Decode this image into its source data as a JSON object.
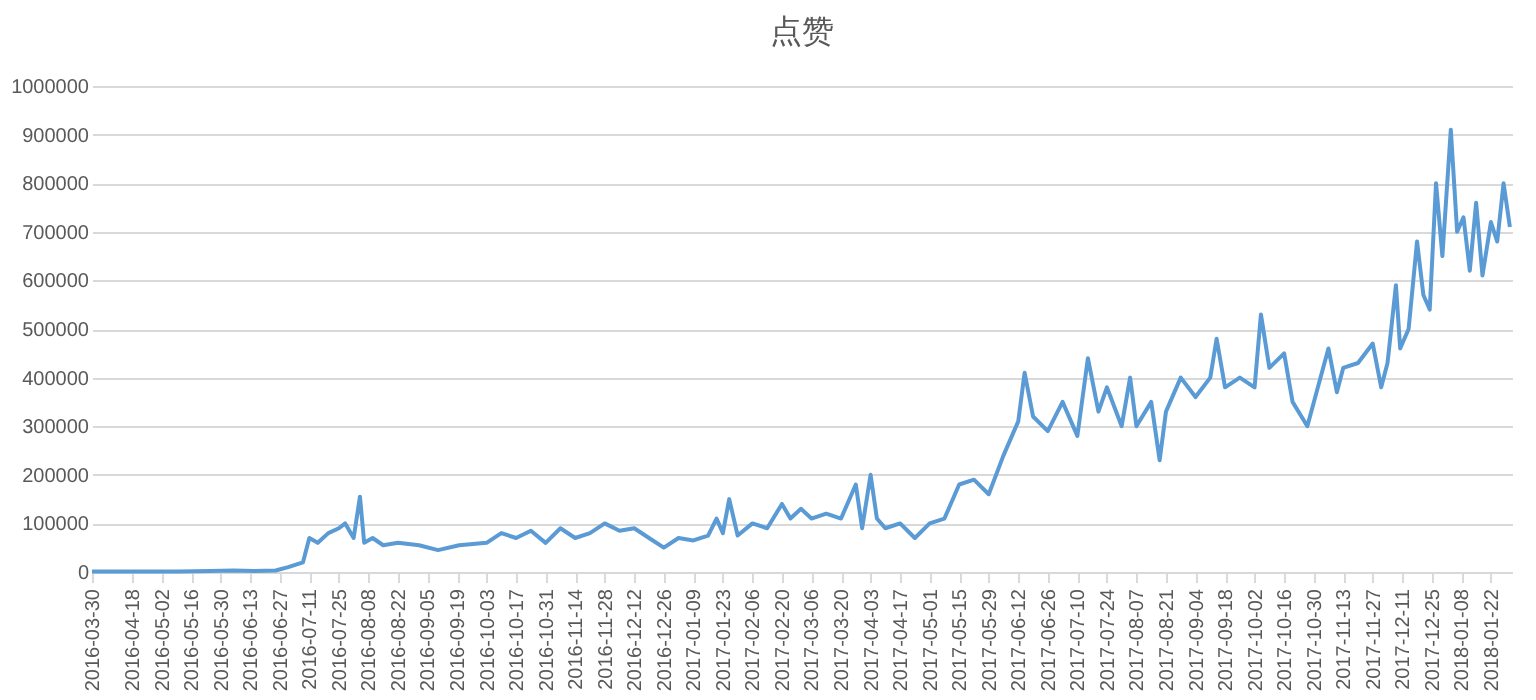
{
  "chart_data": {
    "type": "line",
    "title": "点赞",
    "x": [
      "2016-03-30",
      "2016-04-10",
      "2016-04-25",
      "2016-05-10",
      "2016-05-25",
      "2016-06-05",
      "2016-06-15",
      "2016-06-25",
      "2016-07-01",
      "2016-07-08",
      "2016-07-11",
      "2016-07-15",
      "2016-07-20",
      "2016-07-25",
      "2016-07-28",
      "2016-08-01",
      "2016-08-04",
      "2016-08-06",
      "2016-08-10",
      "2016-08-15",
      "2016-08-22",
      "2016-09-01",
      "2016-09-10",
      "2016-09-20",
      "2016-10-03",
      "2016-10-10",
      "2016-10-17",
      "2016-10-24",
      "2016-10-31",
      "2016-11-07",
      "2016-11-14",
      "2016-11-21",
      "2016-11-28",
      "2016-12-05",
      "2016-12-12",
      "2016-12-19",
      "2016-12-26",
      "2017-01-02",
      "2017-01-09",
      "2017-01-16",
      "2017-01-20",
      "2017-01-23",
      "2017-01-26",
      "2017-01-30",
      "2017-02-06",
      "2017-02-13",
      "2017-02-20",
      "2017-02-24",
      "2017-03-01",
      "2017-03-06",
      "2017-03-13",
      "2017-03-20",
      "2017-03-27",
      "2017-03-30",
      "2017-04-03",
      "2017-04-06",
      "2017-04-10",
      "2017-04-17",
      "2017-04-24",
      "2017-05-01",
      "2017-05-08",
      "2017-05-15",
      "2017-05-22",
      "2017-05-29",
      "2017-06-05",
      "2017-06-12",
      "2017-06-15",
      "2017-06-19",
      "2017-06-26",
      "2017-07-03",
      "2017-07-10",
      "2017-07-15",
      "2017-07-20",
      "2017-07-24",
      "2017-07-31",
      "2017-08-04",
      "2017-08-07",
      "2017-08-14",
      "2017-08-18",
      "2017-08-21",
      "2017-08-28",
      "2017-09-04",
      "2017-09-11",
      "2017-09-14",
      "2017-09-18",
      "2017-09-25",
      "2017-10-02",
      "2017-10-05",
      "2017-10-09",
      "2017-10-16",
      "2017-10-20",
      "2017-10-27",
      "2017-11-01",
      "2017-11-06",
      "2017-11-10",
      "2017-11-13",
      "2017-11-20",
      "2017-11-27",
      "2017-12-01",
      "2017-12-04",
      "2017-12-08",
      "2017-12-10",
      "2017-12-14",
      "2017-12-18",
      "2017-12-21",
      "2017-12-24",
      "2017-12-27",
      "2017-12-30",
      "2018-01-03",
      "2018-01-06",
      "2018-01-09",
      "2018-01-12",
      "2018-01-15",
      "2018-01-18",
      "2018-01-22",
      "2018-01-25",
      "2018-01-28",
      "2018-01-31"
    ],
    "series": [
      {
        "color": "#5b9bd5",
        "values": [
          1000,
          1000,
          1000,
          1000,
          2000,
          3000,
          2000,
          3000,
          10000,
          20000,
          70000,
          60000,
          80000,
          90000,
          100000,
          70000,
          155000,
          60000,
          70000,
          55000,
          60000,
          55000,
          45000,
          55000,
          60000,
          80000,
          70000,
          85000,
          60000,
          90000,
          70000,
          80000,
          100000,
          85000,
          90000,
          70000,
          50000,
          70000,
          65000,
          75000,
          110000,
          80000,
          150000,
          75000,
          100000,
          90000,
          140000,
          110000,
          130000,
          110000,
          120000,
          110000,
          180000,
          90000,
          200000,
          110000,
          90000,
          100000,
          70000,
          100000,
          110000,
          180000,
          190000,
          160000,
          240000,
          310000,
          410000,
          320000,
          290000,
          350000,
          280000,
          440000,
          330000,
          380000,
          300000,
          400000,
          300000,
          350000,
          230000,
          330000,
          400000,
          360000,
          400000,
          480000,
          380000,
          400000,
          380000,
          530000,
          420000,
          450000,
          350000,
          300000,
          380000,
          460000,
          370000,
          420000,
          430000,
          470000,
          380000,
          430000,
          590000,
          460000,
          500000,
          680000,
          570000,
          540000,
          800000,
          650000,
          910000,
          700000,
          730000,
          620000,
          760000,
          610000,
          720000,
          680000,
          800000,
          710000
        ]
      }
    ],
    "xlim": [
      "2016-03-30",
      "2018-02-01"
    ],
    "xticks": [
      "2016-03-30",
      "2016-04-18",
      "2016-05-02",
      "2016-05-16",
      "2016-05-30",
      "2016-06-13",
      "2016-06-27",
      "2016-07-11",
      "2016-07-25",
      "2016-08-08",
      "2016-08-22",
      "2016-09-05",
      "2016-09-19",
      "2016-10-03",
      "2016-10-17",
      "2016-10-31",
      "2016-11-14",
      "2016-11-28",
      "2016-12-12",
      "2016-12-26",
      "2017-01-09",
      "2017-01-23",
      "2017-02-06",
      "2017-02-20",
      "2017-03-06",
      "2017-03-20",
      "2017-04-03",
      "2017-04-17",
      "2017-05-01",
      "2017-05-15",
      "2017-05-29",
      "2017-06-12",
      "2017-06-26",
      "2017-07-10",
      "2017-07-24",
      "2017-08-07",
      "2017-08-21",
      "2017-09-04",
      "2017-09-18",
      "2017-10-02",
      "2017-10-16",
      "2017-10-30",
      "2017-11-13",
      "2017-11-27",
      "2017-12-11",
      "2017-12-25",
      "2018-01-08",
      "2018-01-22"
    ],
    "ylim": [
      0,
      1000000
    ],
    "yticks": [
      0,
      100000,
      200000,
      300000,
      400000,
      500000,
      600000,
      700000,
      800000,
      900000,
      1000000
    ],
    "grid": "y",
    "marker": "none",
    "line_style": "solid"
  }
}
